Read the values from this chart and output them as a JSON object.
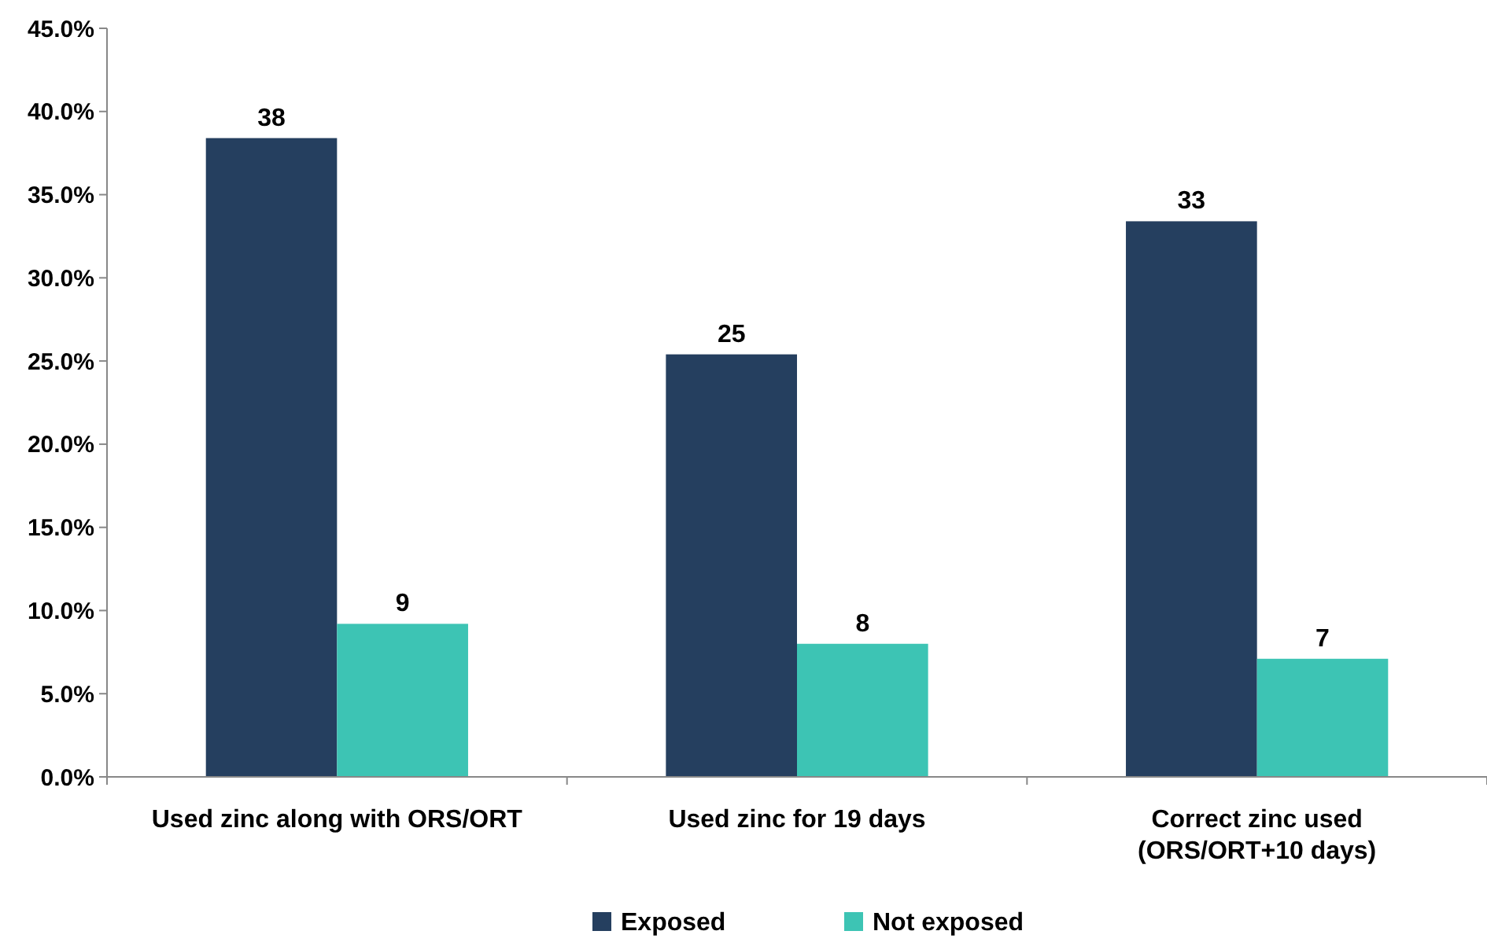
{
  "chart_data": {
    "type": "bar",
    "categories": [
      "Used zinc along with ORS/ORT",
      "Used zinc for 19 days",
      "Correct zinc used\n(ORS/ORT+10 days)"
    ],
    "series": [
      {
        "name": "Exposed",
        "color": "#253f5f",
        "values": [
          38.4,
          25.4,
          33.4
        ],
        "value_labels": [
          "38",
          "25",
          "33"
        ]
      },
      {
        "name": "Not exposed",
        "color": "#3dc4b4",
        "values": [
          9.2,
          8.0,
          7.1
        ],
        "value_labels": [
          "9",
          "8",
          "7"
        ]
      }
    ],
    "ylim": [
      0,
      45
    ],
    "yticks": [
      {
        "value": 0,
        "label": "0.0%"
      },
      {
        "value": 5,
        "label": "5.0%"
      },
      {
        "value": 10,
        "label": "10.0%"
      },
      {
        "value": 15,
        "label": "15.0%"
      },
      {
        "value": 20,
        "label": "20.0%"
      },
      {
        "value": 25,
        "label": "25.0%"
      },
      {
        "value": 30,
        "label": "30.0%"
      },
      {
        "value": 35,
        "label": "35.0%"
      },
      {
        "value": 40,
        "label": "40.0%"
      },
      {
        "value": 45,
        "label": "45.0%"
      }
    ],
    "grid": false,
    "legend": "bottom"
  }
}
